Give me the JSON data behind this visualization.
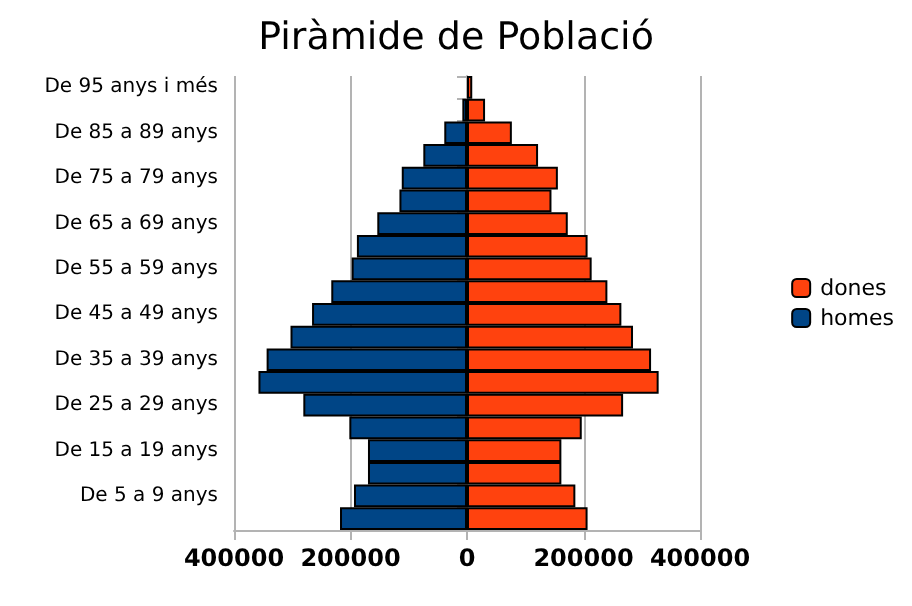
{
  "chart_data": {
    "type": "bar",
    "title": "Piràmide de Població",
    "orientation": "horizontal",
    "stacked": true,
    "categories": [
      "De 95 anys i més",
      null,
      "De 85 a 89 anys",
      null,
      "De 75 a 79 anys",
      null,
      "De 65 a 69 anys",
      null,
      "De 55 a 59 anys",
      null,
      "De 45 a 49 anys",
      null,
      "De 35 a 39 anys",
      null,
      "De 25 a 29 anys",
      null,
      "De 15 a 19 anys",
      null,
      "De 5 a 9 anys",
      null
    ],
    "series": [
      {
        "name": "dones",
        "color": "#ff420e",
        "values": [
          9000,
          31000,
          77000,
          122000,
          156000,
          145000,
          173000,
          207000,
          214000,
          241000,
          265000,
          285000,
          316000,
          329000,
          268000,
          197000,
          162000,
          162000,
          186000,
          207000
        ]
      },
      {
        "name": "homes",
        "color": "#004586",
        "values": [
          null,
          -8000,
          -39000,
          -75000,
          -112000,
          -116000,
          -154000,
          -189000,
          -198000,
          -233000,
          -266000,
          -303000,
          -344000,
          -358000,
          -281000,
          -202000,
          -170000,
          -170000,
          -194000,
          -218000
        ]
      }
    ],
    "xlim": [
      -400000,
      400000
    ],
    "xticks": [
      {
        "value": -400000,
        "label": "400000"
      },
      {
        "value": -200000,
        "label": "200000"
      },
      0,
      200000,
      400000
    ],
    "grid": "x",
    "legend": "right"
  }
}
